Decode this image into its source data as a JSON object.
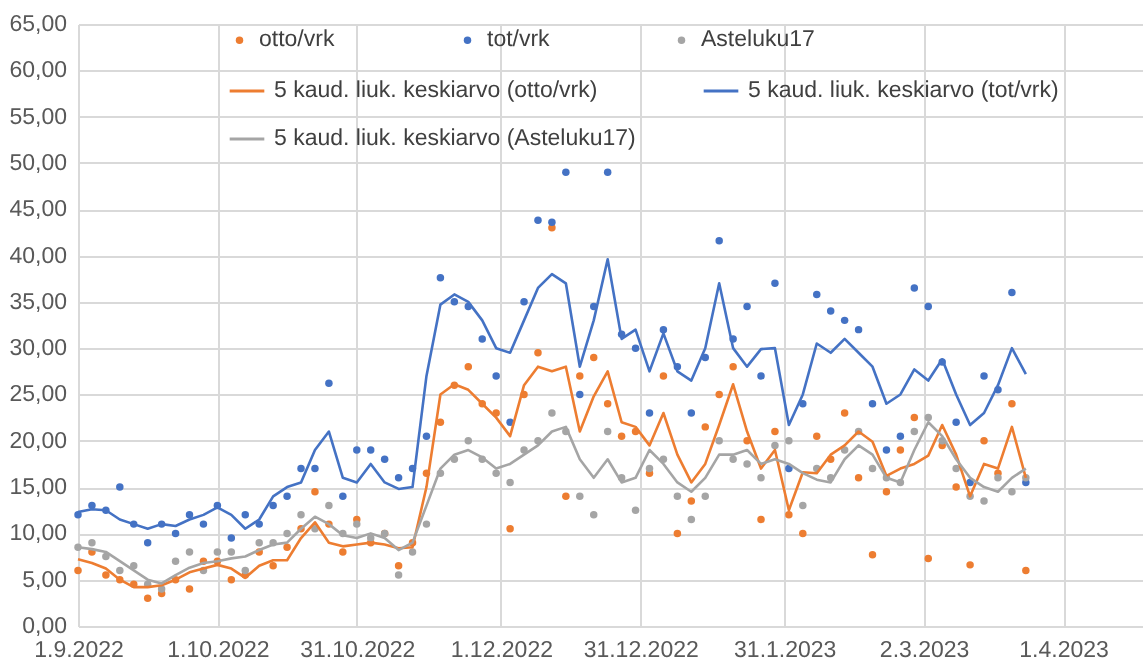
{
  "chart_data": {
    "type": "scatter",
    "x": [
      "2022-09-01",
      "2022-09-04",
      "2022-09-07",
      "2022-09-10",
      "2022-09-13",
      "2022-09-16",
      "2022-09-19",
      "2022-09-22",
      "2022-09-25",
      "2022-09-28",
      "2022-10-01",
      "2022-10-04",
      "2022-10-07",
      "2022-10-10",
      "2022-10-13",
      "2022-10-16",
      "2022-10-19",
      "2022-10-22",
      "2022-10-25",
      "2022-10-28",
      "2022-10-31",
      "2022-11-03",
      "2022-11-06",
      "2022-11-09",
      "2022-11-12",
      "2022-11-15",
      "2022-11-18",
      "2022-11-21",
      "2022-11-24",
      "2022-11-27",
      "2022-11-30",
      "2022-12-03",
      "2022-12-06",
      "2022-12-09",
      "2022-12-12",
      "2022-12-15",
      "2022-12-18",
      "2022-12-21",
      "2022-12-24",
      "2022-12-27",
      "2022-12-30",
      "2023-01-02",
      "2023-01-05",
      "2023-01-08",
      "2023-01-11",
      "2023-01-14",
      "2023-01-17",
      "2023-01-20",
      "2023-01-23",
      "2023-01-26",
      "2023-01-29",
      "2023-02-01",
      "2023-02-04",
      "2023-02-07",
      "2023-02-10",
      "2023-02-13",
      "2023-02-16",
      "2023-02-19",
      "2023-02-22",
      "2023-02-25",
      "2023-02-28",
      "2023-03-03",
      "2023-03-06",
      "2023-03-09",
      "2023-03-12",
      "2023-03-15",
      "2023-03-18",
      "2023-03-21",
      "2023-03-24"
    ],
    "series": [
      {
        "name": "otto/vrk",
        "type": "scatter",
        "marker": "circle",
        "color": "#ed7d31",
        "values": [
          6,
          8,
          5.5,
          5,
          4.5,
          3,
          3.5,
          5,
          4,
          7,
          7,
          5,
          5.5,
          8,
          6.5,
          8.5,
          10.5,
          14.5,
          11,
          8,
          11.5,
          9,
          10,
          6.5,
          9,
          16.5,
          22,
          26,
          28,
          24,
          23,
          10.5,
          25,
          29.5,
          43,
          14,
          27,
          29,
          24,
          20.5,
          21,
          16.5,
          27,
          10,
          13.5,
          21.5,
          25,
          28,
          20,
          11.5,
          21,
          12,
          10,
          20.5,
          18,
          23,
          16,
          7.7,
          14.5,
          19,
          22.5,
          7.3,
          19.5,
          15,
          6.6,
          20,
          16.5,
          24,
          6
        ]
      },
      {
        "name": "tot/vrk",
        "type": "scatter",
        "marker": "circle",
        "color": "#4472c4",
        "values": [
          12,
          13,
          12.5,
          15,
          11,
          9,
          11,
          10,
          12,
          11,
          13,
          9.5,
          12,
          11,
          13,
          14,
          17,
          17,
          26.2,
          14,
          19,
          19,
          18,
          16,
          17,
          20.5,
          37.6,
          35,
          34.5,
          31,
          27,
          22,
          35,
          43.8,
          43.6,
          49,
          25,
          34.5,
          49,
          31.5,
          30,
          23,
          32,
          28,
          23,
          29,
          41.6,
          31,
          34.5,
          27,
          37,
          17,
          24,
          35.8,
          34,
          33,
          32,
          24,
          19,
          20.5,
          36.5,
          34.5,
          28.5,
          22,
          15.5,
          27,
          25.5,
          36,
          15.5
        ]
      },
      {
        "name": "Asteluku17",
        "type": "scatter",
        "marker": "circle",
        "color": "#a5a5a5",
        "values": [
          8.5,
          9,
          7.5,
          6,
          6.5,
          4.5,
          4,
          7,
          8,
          6,
          8,
          8,
          6,
          9,
          9,
          10,
          12,
          10.5,
          13,
          10,
          11,
          9.5,
          10,
          5.5,
          8,
          11,
          16.5,
          18,
          20,
          18,
          16.5,
          15.5,
          19,
          20,
          23,
          21,
          14,
          12,
          21,
          16,
          12.5,
          17,
          18,
          14,
          11.5,
          14,
          20,
          18,
          17.5,
          16,
          19.5,
          20,
          13,
          17,
          16,
          19,
          21,
          17,
          16,
          15.5,
          21,
          22.5,
          20,
          17,
          14,
          13.5,
          16,
          14.5,
          16
        ]
      },
      {
        "name": "5 kaud. liuk. keskiarvo (otto/vrk)",
        "type": "line",
        "color": "#ed7d31",
        "values": [
          7.2,
          6.8,
          6.2,
          5,
          4.2,
          4.2,
          4.4,
          5,
          5.8,
          6.2,
          6.6,
          6.2,
          5.2,
          6.5,
          7.1,
          7.1,
          9.5,
          11.2,
          9,
          8.6,
          8.8,
          9,
          8.8,
          8.4,
          8.5,
          15,
          25,
          26.1,
          25.5,
          24,
          22.5,
          20.5,
          26,
          28,
          27.5,
          28,
          21,
          24.8,
          27.5,
          22,
          21.5,
          19.5,
          23,
          18.5,
          15.5,
          17.5,
          21.7,
          26.1,
          21,
          17,
          19,
          12.5,
          16.6,
          16.5,
          18.5,
          19.5,
          21,
          19.9,
          16.2,
          17,
          17.5,
          18.4,
          21.7,
          18.5,
          14,
          17.5,
          17,
          21.5,
          16
        ]
      },
      {
        "name": "5 kaud. liuk. keskiarvo (tot/vrk)",
        "type": "line",
        "color": "#4472c4",
        "values": [
          12.3,
          12.6,
          12.5,
          11.5,
          11,
          10.5,
          11,
          10.8,
          11.5,
          12,
          12.8,
          12,
          10.5,
          11.5,
          14,
          15,
          15.5,
          19,
          21,
          16,
          15.5,
          17.5,
          15.5,
          14.8,
          15,
          27,
          34.7,
          35.8,
          35,
          33,
          30,
          29.5,
          33,
          36.5,
          38,
          37,
          28,
          33,
          39.6,
          31,
          32,
          27.5,
          31.6,
          27.5,
          26.5,
          30,
          37,
          30,
          28,
          29.9,
          30,
          21.7,
          25,
          30.5,
          29.5,
          31,
          29.5,
          28,
          24,
          25,
          27.7,
          26.5,
          28.8,
          25,
          21.7,
          23,
          26,
          30,
          27.2
        ]
      },
      {
        "name": "5 kaud. liuk. keskiarvo (Asteluku17)",
        "type": "line",
        "color": "#a5a5a5",
        "values": [
          8.5,
          8.3,
          8,
          7,
          6,
          5,
          4.6,
          5.5,
          6.3,
          6.8,
          7,
          7.3,
          7.5,
          8.2,
          8.8,
          9,
          10.5,
          11.8,
          11,
          9.8,
          9.5,
          10,
          9.5,
          8.2,
          9,
          13,
          17,
          18.5,
          19,
          18.2,
          17,
          17.5,
          18.5,
          19.5,
          21,
          21.5,
          18,
          16,
          18,
          15.5,
          16,
          19,
          17.5,
          15.5,
          14.5,
          16,
          18.5,
          18.5,
          19,
          17.5,
          18,
          17.5,
          16.5,
          15.8,
          15.5,
          18,
          19.5,
          18.5,
          16,
          15.5,
          19,
          22,
          20.5,
          18,
          16,
          15,
          14.5,
          16,
          17
        ]
      }
    ],
    "xlim": [
      "2022-09-01",
      "2023-04-18"
    ],
    "xticks": [
      {
        "value": "2022-09-01",
        "label": "1.9.2022"
      },
      {
        "value": "2022-10-01",
        "label": "1.10.2022"
      },
      {
        "value": "2022-10-31",
        "label": "31.10.2022"
      },
      {
        "value": "2022-12-01",
        "label": "1.12.2022"
      },
      {
        "value": "2022-12-31",
        "label": "31.12.2022"
      },
      {
        "value": "2023-01-31",
        "label": "31.1.2023"
      },
      {
        "value": "2023-03-02",
        "label": "2.3.2023"
      },
      {
        "value": "2023-04-01",
        "label": "1.4.2023"
      }
    ],
    "ylim": [
      0,
      65
    ],
    "yticks": [
      {
        "value": 0,
        "label": "0,00"
      },
      {
        "value": 5,
        "label": "5,00"
      },
      {
        "value": 10,
        "label": "10,00"
      },
      {
        "value": 15,
        "label": "15,00"
      },
      {
        "value": 20,
        "label": "20,00"
      },
      {
        "value": 25,
        "label": "25,00"
      },
      {
        "value": 30,
        "label": "30,00"
      },
      {
        "value": 35,
        "label": "35,00"
      },
      {
        "value": 40,
        "label": "40,00"
      },
      {
        "value": 45,
        "label": "45,00"
      },
      {
        "value": 50,
        "label": "50,00"
      },
      {
        "value": 55,
        "label": "55,00"
      },
      {
        "value": 60,
        "label": "60,00"
      },
      {
        "value": 65,
        "label": "65,00"
      }
    ],
    "grid": true,
    "legend": "top"
  }
}
